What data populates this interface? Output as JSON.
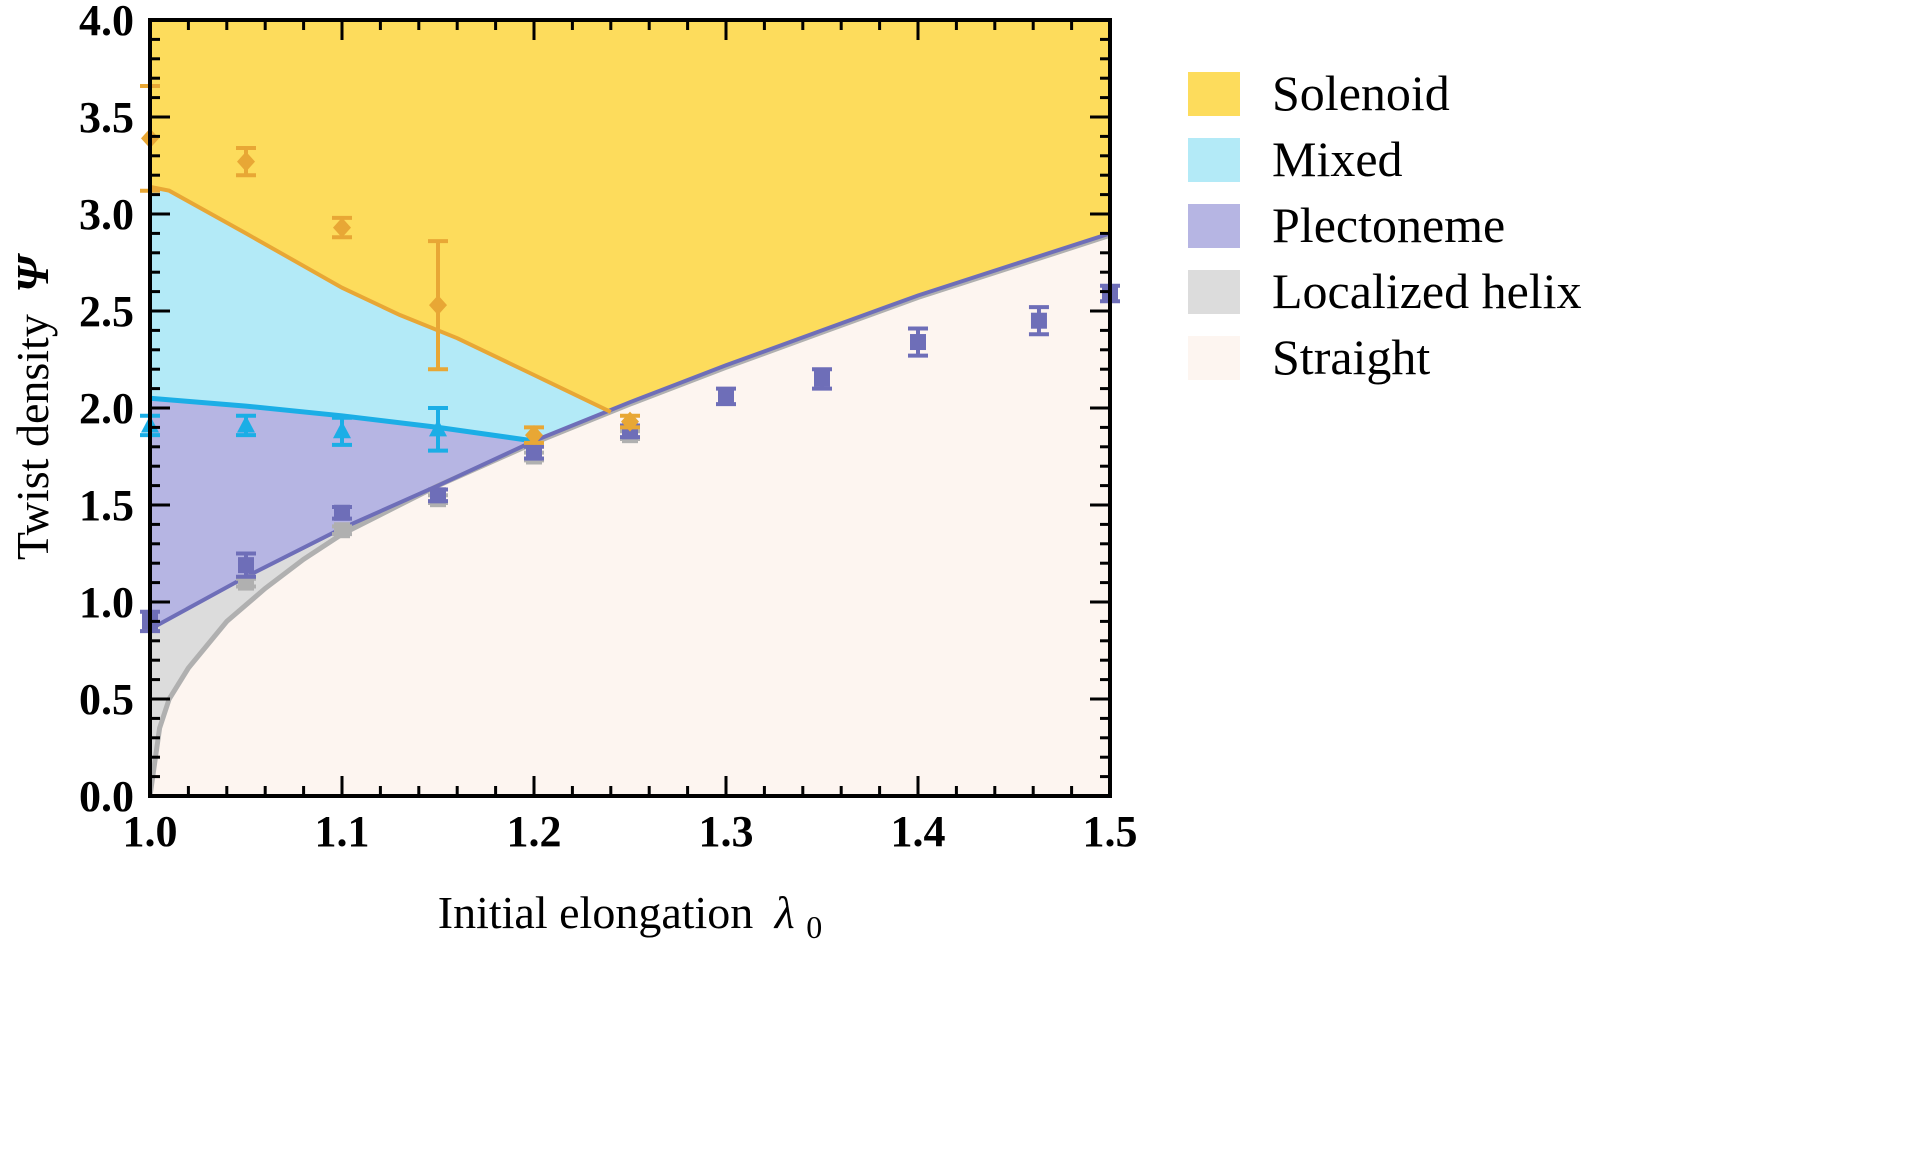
{
  "chart_data": {
    "type": "area",
    "xlabel": "Initial elongation",
    "xlabel_symbol": "λ",
    "xlabel_subscript": "0",
    "ylabel": "Twist density",
    "ylabel_symbol": "Ψ",
    "xlim": [
      1.0,
      1.5
    ],
    "ylim": [
      0.0,
      4.0
    ],
    "x_ticks": [
      "1.0",
      "1.1",
      "1.2",
      "1.3",
      "1.4",
      "1.5"
    ],
    "y_ticks": [
      "0.0",
      "0.5",
      "1.0",
      "1.5",
      "2.0",
      "2.5",
      "3.0",
      "3.5",
      "4.0"
    ],
    "grid": false,
    "legend_position": "right",
    "regions": [
      {
        "name": "Solenoid",
        "color": "#FDDC5C"
      },
      {
        "name": "Mixed",
        "color": "#B3EAF7"
      },
      {
        "name": "Plectoneme",
        "color": "#B6B5E3"
      },
      {
        "name": "Localized helix",
        "color": "#DCDCDC"
      },
      {
        "name": "Straight",
        "color": "#FDF5F0"
      }
    ],
    "boundaries": {
      "solenoid_mixed": {
        "color": "#E8A735",
        "x": [
          1.0,
          1.01,
          1.05,
          1.1,
          1.13,
          1.16,
          1.2,
          1.24
        ],
        "y": [
          3.14,
          3.12,
          2.9,
          2.62,
          2.48,
          2.36,
          2.17,
          1.98
        ]
      },
      "mixed_plectoneme": {
        "color": "#1BAEE6",
        "x": [
          1.0,
          1.05,
          1.1,
          1.15,
          1.2
        ],
        "y": [
          2.05,
          2.01,
          1.96,
          1.9,
          1.83
        ]
      },
      "plectoneme_localized": {
        "color": "#6E6EB8",
        "x": [
          1.0,
          1.05,
          1.1,
          1.15,
          1.2,
          1.25,
          1.3,
          1.35,
          1.4,
          1.45,
          1.5
        ],
        "y": [
          0.86,
          1.13,
          1.38,
          1.6,
          1.83,
          2.03,
          2.22,
          2.4,
          2.58,
          2.74,
          2.9
        ]
      },
      "localized_straight": {
        "color": "#B0B0B0",
        "x": [
          1.0,
          1.005,
          1.01,
          1.02,
          1.04,
          1.06,
          1.08,
          1.1,
          1.15,
          1.2,
          1.25,
          1.3,
          1.35,
          1.4,
          1.45,
          1.5
        ],
        "y": [
          0.0,
          0.35,
          0.5,
          0.66,
          0.9,
          1.07,
          1.22,
          1.35,
          1.6,
          1.82,
          2.02,
          2.21,
          2.39,
          2.57,
          2.73,
          2.89
        ]
      }
    },
    "series": [
      {
        "name": "Solenoid",
        "marker": "diamond",
        "color": "#E8A735",
        "x": [
          1.0,
          1.05,
          1.1,
          1.15,
          1.2,
          1.25
        ],
        "y": [
          3.39,
          3.27,
          2.93,
          2.53,
          1.86,
          1.93
        ],
        "err": [
          0.27,
          0.07,
          0.05,
          0.33,
          0.04,
          0.03
        ]
      },
      {
        "name": "Mixed",
        "marker": "triangle",
        "color": "#1BAEE6",
        "x": [
          1.0,
          1.05,
          1.1,
          1.15
        ],
        "y": [
          1.91,
          1.91,
          1.88,
          1.89
        ],
        "err": [
          0.05,
          0.05,
          0.07,
          0.11
        ]
      },
      {
        "name": "Plectoneme",
        "marker": "square",
        "color": "#6E6EB8",
        "x": [
          1.0,
          1.05,
          1.1,
          1.15,
          1.2,
          1.25,
          1.3,
          1.35,
          1.4,
          1.463,
          1.5
        ],
        "y": [
          0.9,
          1.19,
          1.46,
          1.55,
          1.77,
          1.88,
          2.06,
          2.15,
          2.34,
          2.45,
          2.59
        ],
        "err": [
          0.05,
          0.06,
          0.03,
          0.03,
          0.03,
          0.03,
          0.04,
          0.05,
          0.07,
          0.07,
          0.04
        ]
      },
      {
        "name": "Localized helix",
        "marker": "square",
        "color": "#B0B0B0",
        "x": [
          1.05,
          1.1,
          1.15,
          1.2,
          1.25
        ],
        "y": [
          1.1,
          1.37,
          1.53,
          1.75,
          1.86
        ],
        "err": [
          0.02,
          0.02,
          0.02,
          0.02,
          0.02
        ]
      }
    ]
  }
}
